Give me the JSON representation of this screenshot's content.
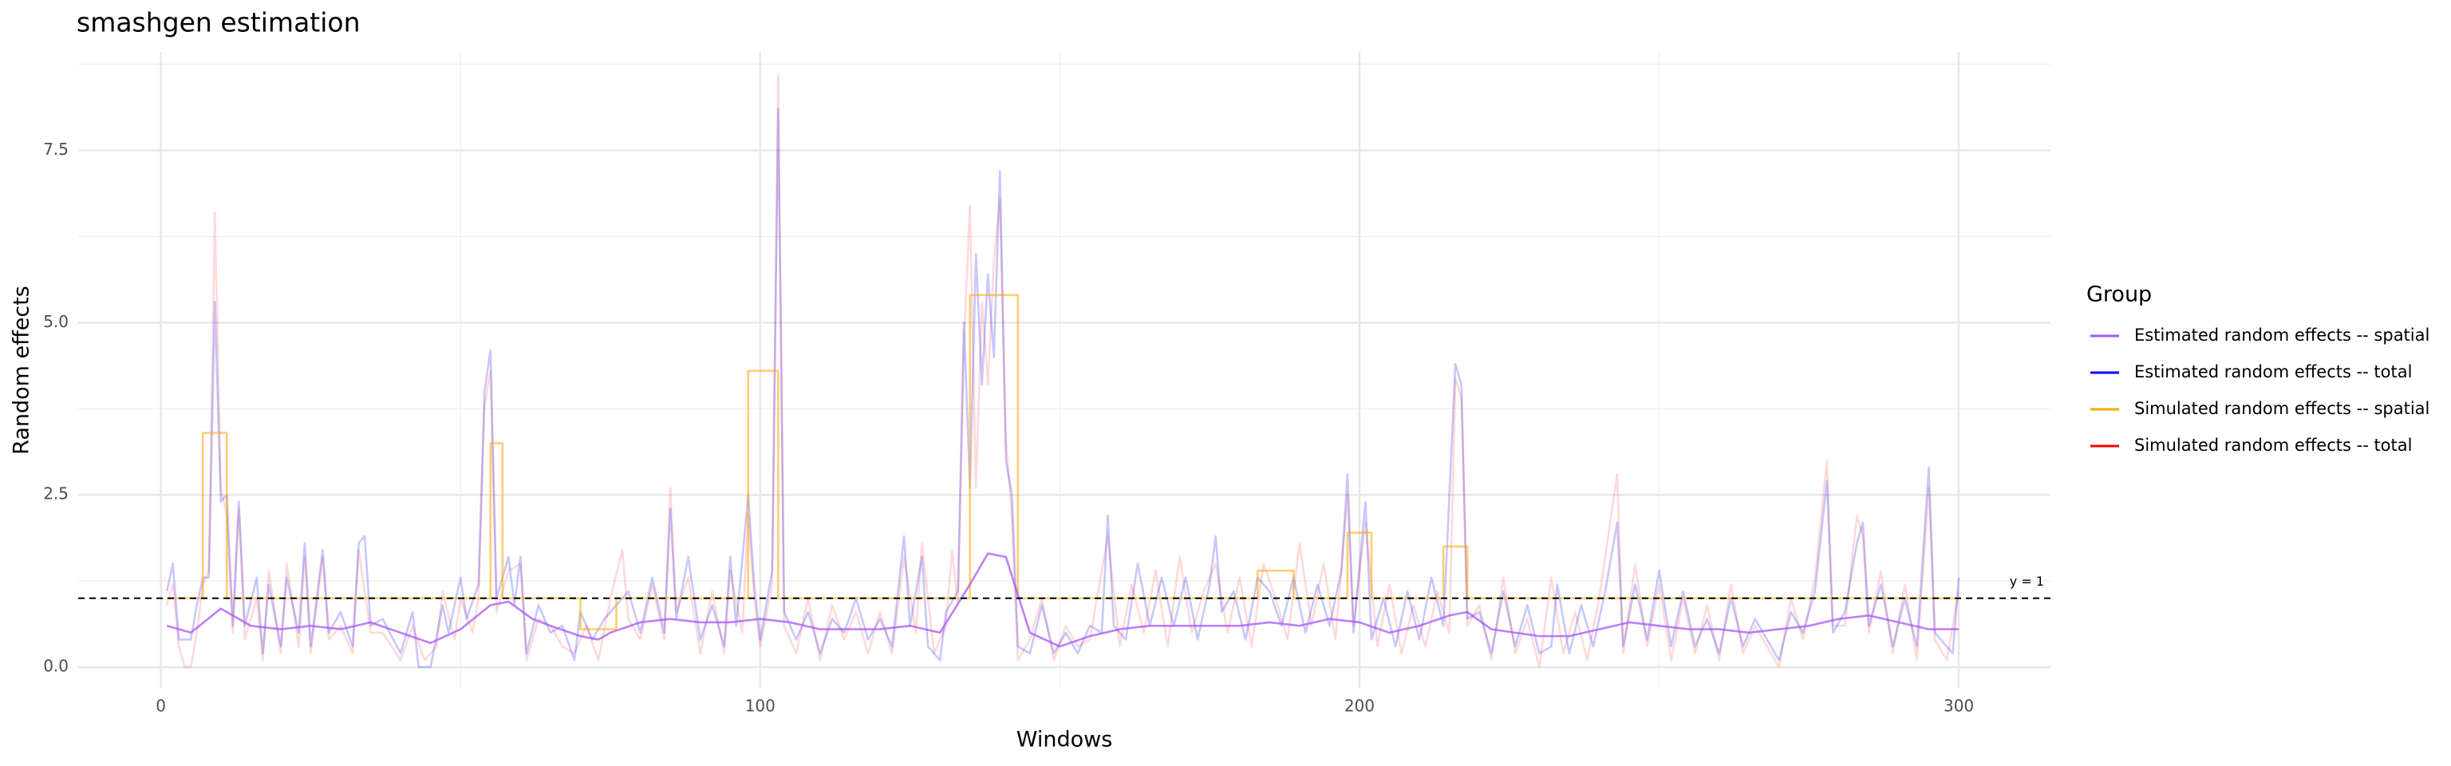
{
  "chart_data": {
    "type": "line",
    "title": "smashgen estimation",
    "x_label": "Windows",
    "y_label": "Random effects",
    "legend_title": "Group",
    "legend_position": "right",
    "grid": true,
    "xlim": [
      -13.8,
      315.3
    ],
    "ylim": [
      -0.3,
      8.93
    ],
    "xticks": [
      0,
      100,
      200,
      300
    ],
    "yticks": [
      {
        "value": 0,
        "label": "0.0"
      },
      2.5,
      {
        "value": 5,
        "label": "5.0"
      },
      7.5
    ],
    "x_minor_grid": [
      50,
      150,
      250
    ],
    "y_minor_grid": [
      1.25,
      3.75,
      6.25,
      8.75
    ],
    "hline": {
      "value": 1,
      "label": "y = 1"
    },
    "series": [
      {
        "name": "Estimated random effects -- spatial",
        "color": "#a855f7",
        "alpha": 0.75,
        "x": [
          1,
          5,
          10,
          15,
          20,
          25,
          30,
          35,
          40,
          45,
          50,
          55,
          58,
          62,
          65,
          70,
          73,
          75,
          80,
          85,
          90,
          95,
          100,
          105,
          110,
          115,
          120,
          125,
          130,
          135,
          138,
          141,
          145,
          150,
          155,
          160,
          165,
          170,
          175,
          180,
          185,
          190,
          195,
          200,
          205,
          210,
          215,
          218,
          222,
          230,
          235,
          240,
          245,
          250,
          255,
          260,
          265,
          270,
          275,
          280,
          285,
          290,
          295,
          300
        ],
        "values": [
          0.6,
          0.5,
          0.85,
          0.6,
          0.55,
          0.6,
          0.55,
          0.65,
          0.5,
          0.35,
          0.55,
          0.9,
          0.95,
          0.7,
          0.6,
          0.45,
          0.4,
          0.5,
          0.65,
          0.7,
          0.65,
          0.65,
          0.7,
          0.65,
          0.55,
          0.55,
          0.55,
          0.6,
          0.5,
          1.2,
          1.65,
          1.6,
          0.5,
          0.3,
          0.45,
          0.55,
          0.6,
          0.6,
          0.6,
          0.6,
          0.65,
          0.6,
          0.7,
          0.65,
          0.5,
          0.6,
          0.75,
          0.8,
          0.55,
          0.45,
          0.45,
          0.55,
          0.65,
          0.6,
          0.55,
          0.55,
          0.5,
          0.55,
          0.6,
          0.7,
          0.75,
          0.65,
          0.55,
          0.55
        ]
      },
      {
        "name": "Estimated random effects -- total",
        "color": "#0000ff",
        "alpha": 0.22,
        "x": [
          1,
          2,
          3,
          5,
          6,
          7,
          8,
          9,
          10,
          11,
          12,
          13,
          14,
          16,
          17,
          18,
          20,
          21,
          23,
          24,
          25,
          27,
          28,
          30,
          32,
          33,
          34,
          35,
          37,
          40,
          42,
          43,
          45,
          47,
          48,
          50,
          51,
          53,
          54,
          55,
          56,
          58,
          59,
          60,
          61,
          63,
          65,
          67,
          69,
          70,
          72,
          74,
          76,
          78,
          80,
          82,
          84,
          85,
          86,
          88,
          90,
          92,
          94,
          95,
          96,
          98,
          99,
          100,
          102,
          103,
          104,
          106,
          108,
          110,
          112,
          114,
          116,
          118,
          120,
          122,
          124,
          125,
          127,
          128,
          130,
          131,
          133,
          134,
          135,
          136,
          137,
          138,
          139,
          140,
          141,
          142,
          143,
          145,
          147,
          149,
          151,
          153,
          155,
          157,
          158,
          159,
          161,
          163,
          165,
          167,
          169,
          171,
          173,
          175,
          176,
          177,
          179,
          181,
          183,
          185,
          187,
          189,
          191,
          193,
          195,
          197,
          198,
          199,
          201,
          202,
          204,
          206,
          208,
          210,
          212,
          214,
          216,
          217,
          218,
          220,
          222,
          224,
          226,
          228,
          230,
          232,
          233,
          235,
          237,
          239,
          241,
          243,
          244,
          246,
          248,
          250,
          252,
          254,
          256,
          258,
          260,
          262,
          264,
          266,
          268,
          270,
          272,
          274,
          276,
          278,
          279,
          281,
          283,
          284,
          285,
          287,
          289,
          291,
          293,
          295,
          296,
          298,
          299,
          300
        ],
        "values": [
          1.1,
          1.5,
          0.4,
          0.4,
          0.9,
          1.3,
          1.3,
          5.3,
          2.4,
          2.5,
          0.6,
          2.4,
          0.6,
          1.3,
          0.2,
          1.2,
          0.3,
          1.3,
          0.5,
          1.8,
          0.3,
          1.7,
          0.5,
          0.8,
          0.3,
          1.8,
          1.9,
          0.6,
          0.7,
          0.2,
          0.8,
          0.0,
          0.0,
          0.9,
          0.5,
          1.3,
          0.7,
          1.2,
          4.0,
          4.6,
          1.0,
          1.6,
          0.9,
          1.6,
          0.2,
          0.9,
          0.5,
          0.6,
          0.1,
          0.8,
          0.4,
          0.7,
          0.9,
          1.1,
          0.5,
          1.3,
          0.5,
          2.3,
          0.7,
          1.6,
          0.4,
          0.9,
          0.3,
          1.6,
          0.6,
          2.5,
          1.2,
          0.4,
          1.4,
          8.1,
          0.8,
          0.4,
          0.8,
          0.2,
          0.7,
          0.5,
          1.0,
          0.4,
          0.7,
          0.3,
          1.9,
          0.6,
          1.6,
          0.3,
          0.1,
          0.8,
          1.1,
          5.0,
          2.6,
          6.0,
          4.1,
          5.7,
          4.5,
          7.2,
          3.0,
          2.5,
          0.3,
          0.2,
          0.9,
          0.2,
          0.5,
          0.2,
          0.6,
          0.5,
          2.2,
          0.6,
          0.4,
          1.5,
          0.6,
          1.3,
          0.6,
          1.3,
          0.4,
          1.2,
          1.9,
          0.8,
          1.1,
          0.4,
          1.3,
          1.1,
          0.6,
          1.3,
          0.5,
          1.2,
          0.6,
          1.4,
          2.8,
          0.5,
          2.4,
          0.4,
          1.0,
          0.3,
          1.1,
          0.4,
          1.3,
          0.6,
          4.4,
          4.1,
          0.7,
          0.8,
          0.2,
          1.1,
          0.3,
          0.9,
          0.2,
          0.3,
          1.2,
          0.2,
          0.9,
          0.3,
          1.1,
          2.1,
          0.3,
          1.2,
          0.4,
          1.4,
          0.3,
          1.1,
          0.3,
          0.7,
          0.2,
          1.0,
          0.3,
          0.7,
          0.4,
          0.1,
          0.8,
          0.5,
          1.1,
          2.7,
          0.5,
          0.8,
          1.8,
          2.1,
          0.6,
          1.2,
          0.3,
          1.0,
          0.3,
          2.9,
          0.5,
          0.3,
          0.2,
          1.3
        ]
      },
      {
        "name": "Simulated random effects -- spatial",
        "color": "#ffa500",
        "alpha": 0.55,
        "x": [
          1,
          7,
          7,
          11,
          11,
          55,
          55,
          57,
          57,
          70,
          70,
          76,
          76,
          98,
          98,
          103,
          103,
          135,
          135,
          143,
          143,
          183,
          183,
          189,
          189,
          198,
          198,
          202,
          202,
          214,
          214,
          218,
          218,
          300
        ],
        "values": [
          1,
          1,
          3.4,
          3.4,
          1,
          1,
          3.25,
          3.25,
          1,
          1,
          0.55,
          0.55,
          1,
          1,
          4.3,
          4.3,
          1,
          1,
          5.4,
          5.4,
          1,
          1,
          1.4,
          1.4,
          1,
          1,
          1.95,
          1.95,
          1,
          1,
          1.75,
          1.75,
          1,
          1
        ]
      },
      {
        "name": "Simulated random effects -- total",
        "color": "#ff0000",
        "alpha": 0.15,
        "x": [
          1,
          2,
          3,
          4,
          5,
          6,
          7,
          8,
          9,
          10,
          11,
          12,
          13,
          14,
          16,
          17,
          18,
          20,
          21,
          23,
          24,
          25,
          27,
          28,
          30,
          32,
          33,
          35,
          37,
          40,
          42,
          44,
          46,
          47,
          49,
          50,
          52,
          53,
          54,
          55,
          56,
          58,
          60,
          61,
          63,
          65,
          67,
          69,
          71,
          73,
          75,
          77,
          78,
          80,
          82,
          84,
          85,
          86,
          88,
          90,
          92,
          94,
          95,
          97,
          98,
          99,
          100,
          102,
          103,
          104,
          106,
          108,
          110,
          112,
          114,
          116,
          118,
          120,
          122,
          124,
          126,
          127,
          129,
          131,
          132,
          133,
          134,
          135,
          136,
          137,
          138,
          139,
          140,
          141,
          142,
          143,
          145,
          147,
          149,
          151,
          153,
          155,
          158,
          160,
          162,
          164,
          166,
          168,
          170,
          172,
          174,
          176,
          178,
          180,
          182,
          184,
          186,
          188,
          190,
          192,
          194,
          196,
          198,
          199,
          201,
          203,
          205,
          207,
          209,
          211,
          213,
          215,
          216,
          217,
          218,
          220,
          222,
          224,
          226,
          228,
          230,
          232,
          234,
          236,
          238,
          240,
          243,
          244,
          246,
          248,
          250,
          252,
          254,
          256,
          258,
          260,
          262,
          264,
          266,
          268,
          270,
          272,
          274,
          276,
          278,
          279,
          281,
          283,
          284,
          285,
          287,
          289,
          291,
          293,
          295,
          296,
          298,
          300
        ],
        "values": [
          0.9,
          1.2,
          0.3,
          0.0,
          0.0,
          0.5,
          1.2,
          1.4,
          6.6,
          2.6,
          2.2,
          0.5,
          2.3,
          0.4,
          1.0,
          0.1,
          1.4,
          0.2,
          1.5,
          0.3,
          1.6,
          0.2,
          1.6,
          0.4,
          0.6,
          0.2,
          1.7,
          0.5,
          0.5,
          0.1,
          0.6,
          0.1,
          0.3,
          1.1,
          0.4,
          1.0,
          0.5,
          1.0,
          3.8,
          4.3,
          0.8,
          1.4,
          1.5,
          0.1,
          0.7,
          0.6,
          0.3,
          0.2,
          0.6,
          0.1,
          1.0,
          1.7,
          0.7,
          0.4,
          1.2,
          0.4,
          2.6,
          0.8,
          1.3,
          0.2,
          1.1,
          0.2,
          1.4,
          0.5,
          2.2,
          1.0,
          0.3,
          1.2,
          8.6,
          0.6,
          0.2,
          1.0,
          0.1,
          0.9,
          0.4,
          0.8,
          0.2,
          0.8,
          0.2,
          1.6,
          0.5,
          1.8,
          0.2,
          0.6,
          1.7,
          0.9,
          4.7,
          6.7,
          2.6,
          5.3,
          4.1,
          5.9,
          6.8,
          3.3,
          2.2,
          0.1,
          0.4,
          1.0,
          0.1,
          0.6,
          0.3,
          0.4,
          1.9,
          0.3,
          1.2,
          0.5,
          1.4,
          0.3,
          1.6,
          0.5,
          1.1,
          1.5,
          0.5,
          1.3,
          0.3,
          1.5,
          1.0,
          0.4,
          1.8,
          0.6,
          1.5,
          0.4,
          2.5,
          0.6,
          2.1,
          0.3,
          1.2,
          0.2,
          0.9,
          0.3,
          1.1,
          0.5,
          4.2,
          3.9,
          0.6,
          0.9,
          0.1,
          1.3,
          0.2,
          0.7,
          0.0,
          1.3,
          0.2,
          0.8,
          0.1,
          1.0,
          2.8,
          0.2,
          1.5,
          0.3,
          1.2,
          0.1,
          1.0,
          0.2,
          0.9,
          0.1,
          1.2,
          0.2,
          0.6,
          0.3,
          0.0,
          1.0,
          0.4,
          1.3,
          3.0,
          0.6,
          0.6,
          2.2,
          1.9,
          0.5,
          1.4,
          0.2,
          1.2,
          0.1,
          2.6,
          0.4,
          0.1,
          1.1
        ]
      }
    ]
  }
}
